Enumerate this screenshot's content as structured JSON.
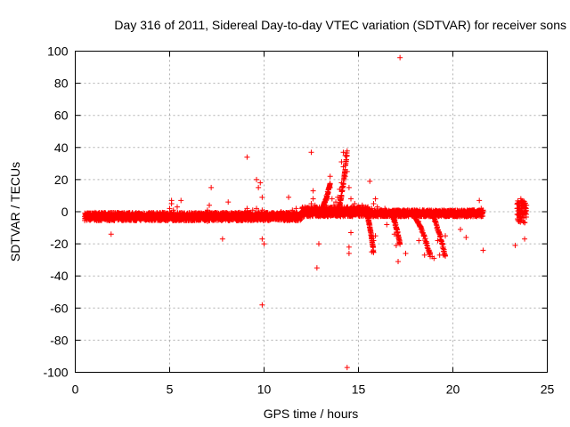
{
  "chart_data": {
    "type": "scatter",
    "title": "Day 316 of 2011, Sidereal Day-to-day VTEC variation (SDTVAR) for receiver sons",
    "xlabel": "GPS time / hours",
    "ylabel": "SDTVAR / TECUs",
    "xlim": [
      0,
      25
    ],
    "ylim": [
      -100,
      100
    ],
    "xticks": [
      0,
      5,
      10,
      15,
      20,
      25
    ],
    "yticks": [
      -100,
      -80,
      -60,
      -40,
      -20,
      0,
      20,
      40,
      60,
      80,
      100
    ],
    "grid": true,
    "marker": "+",
    "color": "#ff0000",
    "series": [
      {
        "name": "SDTVAR",
        "x": [
          0.5,
          0.7,
          0.9,
          1.1,
          1.3,
          1.5,
          1.6,
          1.8,
          1.9,
          2.1,
          2.3,
          2.5,
          2.8,
          3.0,
          3.3,
          3.6,
          3.9,
          4.2,
          4.5,
          4.7,
          4.9,
          5.0,
          5.1,
          5.2,
          5.3,
          5.4,
          5.5,
          5.7,
          6.0,
          6.3,
          6.6,
          6.9,
          7.0,
          7.1,
          7.2,
          7.3,
          7.5,
          7.8,
          8.0,
          8.2,
          8.4,
          8.6,
          8.8,
          9.0,
          9.1,
          9.2,
          9.3,
          9.4,
          9.5,
          9.6,
          9.7,
          9.8,
          9.9,
          10.0,
          10.1,
          10.3,
          10.5,
          10.7,
          10.9,
          11.1,
          11.3,
          11.5,
          11.7,
          11.9,
          12.1,
          12.3,
          12.4,
          12.5,
          12.6,
          12.7,
          12.8,
          12.9,
          13.0,
          13.1,
          13.2,
          13.3,
          13.4,
          13.5,
          13.6,
          13.7,
          13.8,
          13.9,
          14.0,
          14.1,
          14.2,
          14.3,
          14.4,
          14.5,
          14.6,
          14.7,
          14.8,
          14.9,
          15.0,
          15.1,
          15.2,
          15.3,
          15.4,
          15.5,
          15.6,
          15.7,
          15.8,
          15.9,
          16.0,
          16.2,
          16.4,
          16.6,
          16.8,
          17.0,
          17.2,
          17.4,
          17.6,
          17.8,
          18.0,
          18.2,
          18.4,
          18.6,
          18.8,
          19.0,
          19.2,
          19.4,
          19.6,
          19.8,
          20.0,
          20.2,
          20.4,
          20.6,
          20.8,
          21.0,
          21.2,
          21.4,
          21.5,
          21.6,
          23.4,
          23.5,
          23.6,
          23.7,
          23.8,
          23.9,
          1.9,
          1.8,
          5.1,
          5.6,
          7.2,
          7.0,
          7.8,
          8.1,
          9.1,
          9.6,
          9.8,
          9.9,
          10.0,
          9.9,
          9.7,
          9.9,
          11.3,
          12.5,
          12.6,
          12.8,
          12.9,
          13.5,
          14.1,
          14.2,
          14.3,
          14.4,
          14.5,
          14.5,
          14.6,
          14.6,
          15.6,
          15.7,
          15.8,
          15.9,
          17.1,
          17.2,
          18.8,
          18.9,
          19.0,
          19.5,
          19.6,
          20.4,
          20.7,
          21.4,
          21.6,
          23.3,
          23.6,
          23.8,
          16.5,
          16.9,
          17.0,
          17.5,
          18.2,
          18.5,
          19.2,
          19.3
        ],
        "y": [
          -3,
          -2,
          -4,
          -3,
          -2,
          -4,
          -3,
          -2,
          -4,
          -3,
          -2,
          -3,
          -4,
          -3,
          -2,
          -3,
          -4,
          -3,
          -2,
          -3,
          -1,
          2,
          5,
          1,
          -3,
          3,
          -2,
          -3,
          -2,
          -4,
          -3,
          -2,
          1,
          4,
          -2,
          -1,
          -3,
          -4,
          -2,
          -3,
          -2,
          -1,
          -3,
          0,
          2,
          -3,
          -1,
          1,
          -2,
          2,
          0,
          -2,
          1,
          0,
          -1,
          -3,
          -2,
          -1,
          0,
          -2,
          -1,
          1,
          2,
          -1,
          -2,
          0,
          2,
          5,
          8,
          4,
          1,
          -1,
          2,
          3,
          6,
          10,
          12,
          15,
          8,
          4,
          6,
          9,
          14,
          18,
          28,
          35,
          25,
          15,
          8,
          3,
          5,
          2,
          -1,
          1,
          4,
          -2,
          0,
          3,
          -1,
          2,
          5,
          8,
          3,
          1,
          2,
          0,
          -1,
          1,
          0,
          -1,
          1,
          0,
          -1,
          0,
          1,
          -1,
          0,
          -1,
          0,
          -1,
          0,
          -1,
          0,
          -1,
          -1,
          0,
          -1,
          -1,
          0,
          1,
          2,
          1,
          2,
          -1,
          1,
          -2,
          0,
          4,
          -14,
          -5,
          7,
          7,
          15,
          -6,
          -17,
          6,
          34,
          20,
          18,
          -17,
          -20,
          9,
          15,
          -58,
          9,
          37,
          13,
          -35,
          -20,
          22,
          31,
          37,
          22,
          -97,
          -26,
          -22,
          2,
          -13,
          19,
          -25,
          -18,
          -15,
          -31,
          96,
          -26,
          -28,
          -29,
          -27,
          -15,
          -11,
          -16,
          7,
          -24,
          -21,
          8,
          -17,
          -8,
          -14,
          -21,
          -26,
          -18,
          -27,
          -18,
          -27
        ]
      }
    ],
    "dense_bands": [
      {
        "x_from": 0.5,
        "x_to": 12.0,
        "y_center": -3,
        "y_half_width": 2.5
      },
      {
        "x_from": 12.0,
        "x_to": 15.5,
        "y_center": 0,
        "y_half_width": 3
      },
      {
        "x_from": 15.5,
        "x_to": 21.6,
        "y_center": -1,
        "y_half_width": 2
      },
      {
        "x_from": 23.4,
        "x_to": 23.9,
        "y_center": 0,
        "y_half_width": 7
      }
    ],
    "spike_curves": [
      {
        "x_from": 15.4,
        "x_to": 15.8,
        "y_from": 0,
        "y_to": -25
      },
      {
        "x_from": 16.7,
        "x_to": 17.2,
        "y_from": 0,
        "y_to": -20
      },
      {
        "x_from": 17.8,
        "x_to": 18.8,
        "y_from": 0,
        "y_to": -27
      },
      {
        "x_from": 18.8,
        "x_to": 19.6,
        "y_from": 0,
        "y_to": -28
      },
      {
        "x_from": 13.9,
        "x_to": 14.4,
        "y_from": 0,
        "y_to": 37
      },
      {
        "x_from": 13.0,
        "x_to": 13.5,
        "y_from": 0,
        "y_to": 18
      }
    ]
  }
}
